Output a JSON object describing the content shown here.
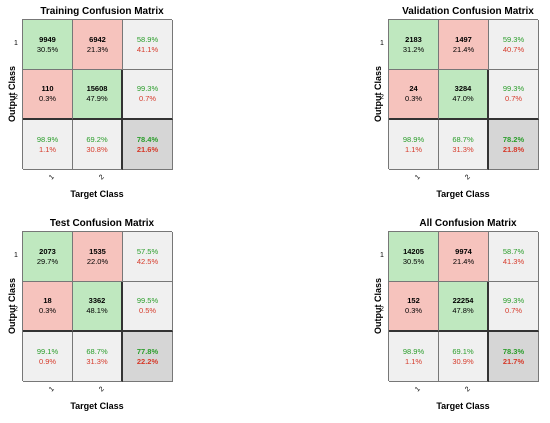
{
  "chart_data": [
    {
      "type": "heatmap",
      "title": "Training Confusion Matrix",
      "xlabel": "Target Class",
      "ylabel": "Output Class",
      "xticks": [
        "1",
        "2"
      ],
      "yticks": [
        "1",
        "2"
      ],
      "cells": [
        [
          {
            "count": "9949",
            "pct": "30.5%"
          },
          {
            "count": "6942",
            "pct": "21.3%"
          },
          {
            "correct": "58.9%",
            "wrong": "41.1%"
          }
        ],
        [
          {
            "count": "110",
            "pct": "0.3%"
          },
          {
            "count": "15608",
            "pct": "47.9%"
          },
          {
            "correct": "99.3%",
            "wrong": "0.7%"
          }
        ],
        [
          {
            "correct": "98.9%",
            "wrong": "1.1%"
          },
          {
            "correct": "69.2%",
            "wrong": "30.8%"
          },
          {
            "correct": "78.4%",
            "wrong": "21.6%"
          }
        ]
      ]
    },
    {
      "type": "heatmap",
      "title": "Validation Confusion Matrix",
      "xlabel": "Target Class",
      "ylabel": "Output Class",
      "xticks": [
        "1",
        "2"
      ],
      "yticks": [
        "1",
        "2"
      ],
      "cells": [
        [
          {
            "count": "2183",
            "pct": "31.2%"
          },
          {
            "count": "1497",
            "pct": "21.4%"
          },
          {
            "correct": "59.3%",
            "wrong": "40.7%"
          }
        ],
        [
          {
            "count": "24",
            "pct": "0.3%"
          },
          {
            "count": "3284",
            "pct": "47.0%"
          },
          {
            "correct": "99.3%",
            "wrong": "0.7%"
          }
        ],
        [
          {
            "correct": "98.9%",
            "wrong": "1.1%"
          },
          {
            "correct": "68.7%",
            "wrong": "31.3%"
          },
          {
            "correct": "78.2%",
            "wrong": "21.8%"
          }
        ]
      ]
    },
    {
      "type": "heatmap",
      "title": "Test Confusion Matrix",
      "xlabel": "Target Class",
      "ylabel": "Output Class",
      "xticks": [
        "1",
        "2"
      ],
      "yticks": [
        "1",
        "2"
      ],
      "cells": [
        [
          {
            "count": "2073",
            "pct": "29.7%"
          },
          {
            "count": "1535",
            "pct": "22.0%"
          },
          {
            "correct": "57.5%",
            "wrong": "42.5%"
          }
        ],
        [
          {
            "count": "18",
            "pct": "0.3%"
          },
          {
            "count": "3362",
            "pct": "48.1%"
          },
          {
            "correct": "99.5%",
            "wrong": "0.5%"
          }
        ],
        [
          {
            "correct": "99.1%",
            "wrong": "0.9%"
          },
          {
            "correct": "68.7%",
            "wrong": "31.3%"
          },
          {
            "correct": "77.8%",
            "wrong": "22.2%"
          }
        ]
      ]
    },
    {
      "type": "heatmap",
      "title": "All Confusion Matrix",
      "xlabel": "Target Class",
      "ylabel": "Output Class",
      "xticks": [
        "1",
        "2"
      ],
      "yticks": [
        "1",
        "2"
      ],
      "cells": [
        [
          {
            "count": "14205",
            "pct": "30.5%"
          },
          {
            "count": "9974",
            "pct": "21.4%"
          },
          {
            "correct": "58.7%",
            "wrong": "41.3%"
          }
        ],
        [
          {
            "count": "152",
            "pct": "0.3%"
          },
          {
            "count": "22254",
            "pct": "47.8%"
          },
          {
            "correct": "99.3%",
            "wrong": "0.7%"
          }
        ],
        [
          {
            "correct": "98.9%",
            "wrong": "1.1%"
          },
          {
            "correct": "69.1%",
            "wrong": "30.9%"
          },
          {
            "correct": "78.3%",
            "wrong": "21.7%"
          }
        ]
      ]
    }
  ],
  "colors": {
    "correct_cell": "#bfe8bf",
    "error_cell": "#f6c3bd",
    "summary_cell": "#f0f0f0",
    "total_cell": "#d6d6d6",
    "correct_text": "#2a9d2a",
    "wrong_text": "#d63a2a"
  }
}
